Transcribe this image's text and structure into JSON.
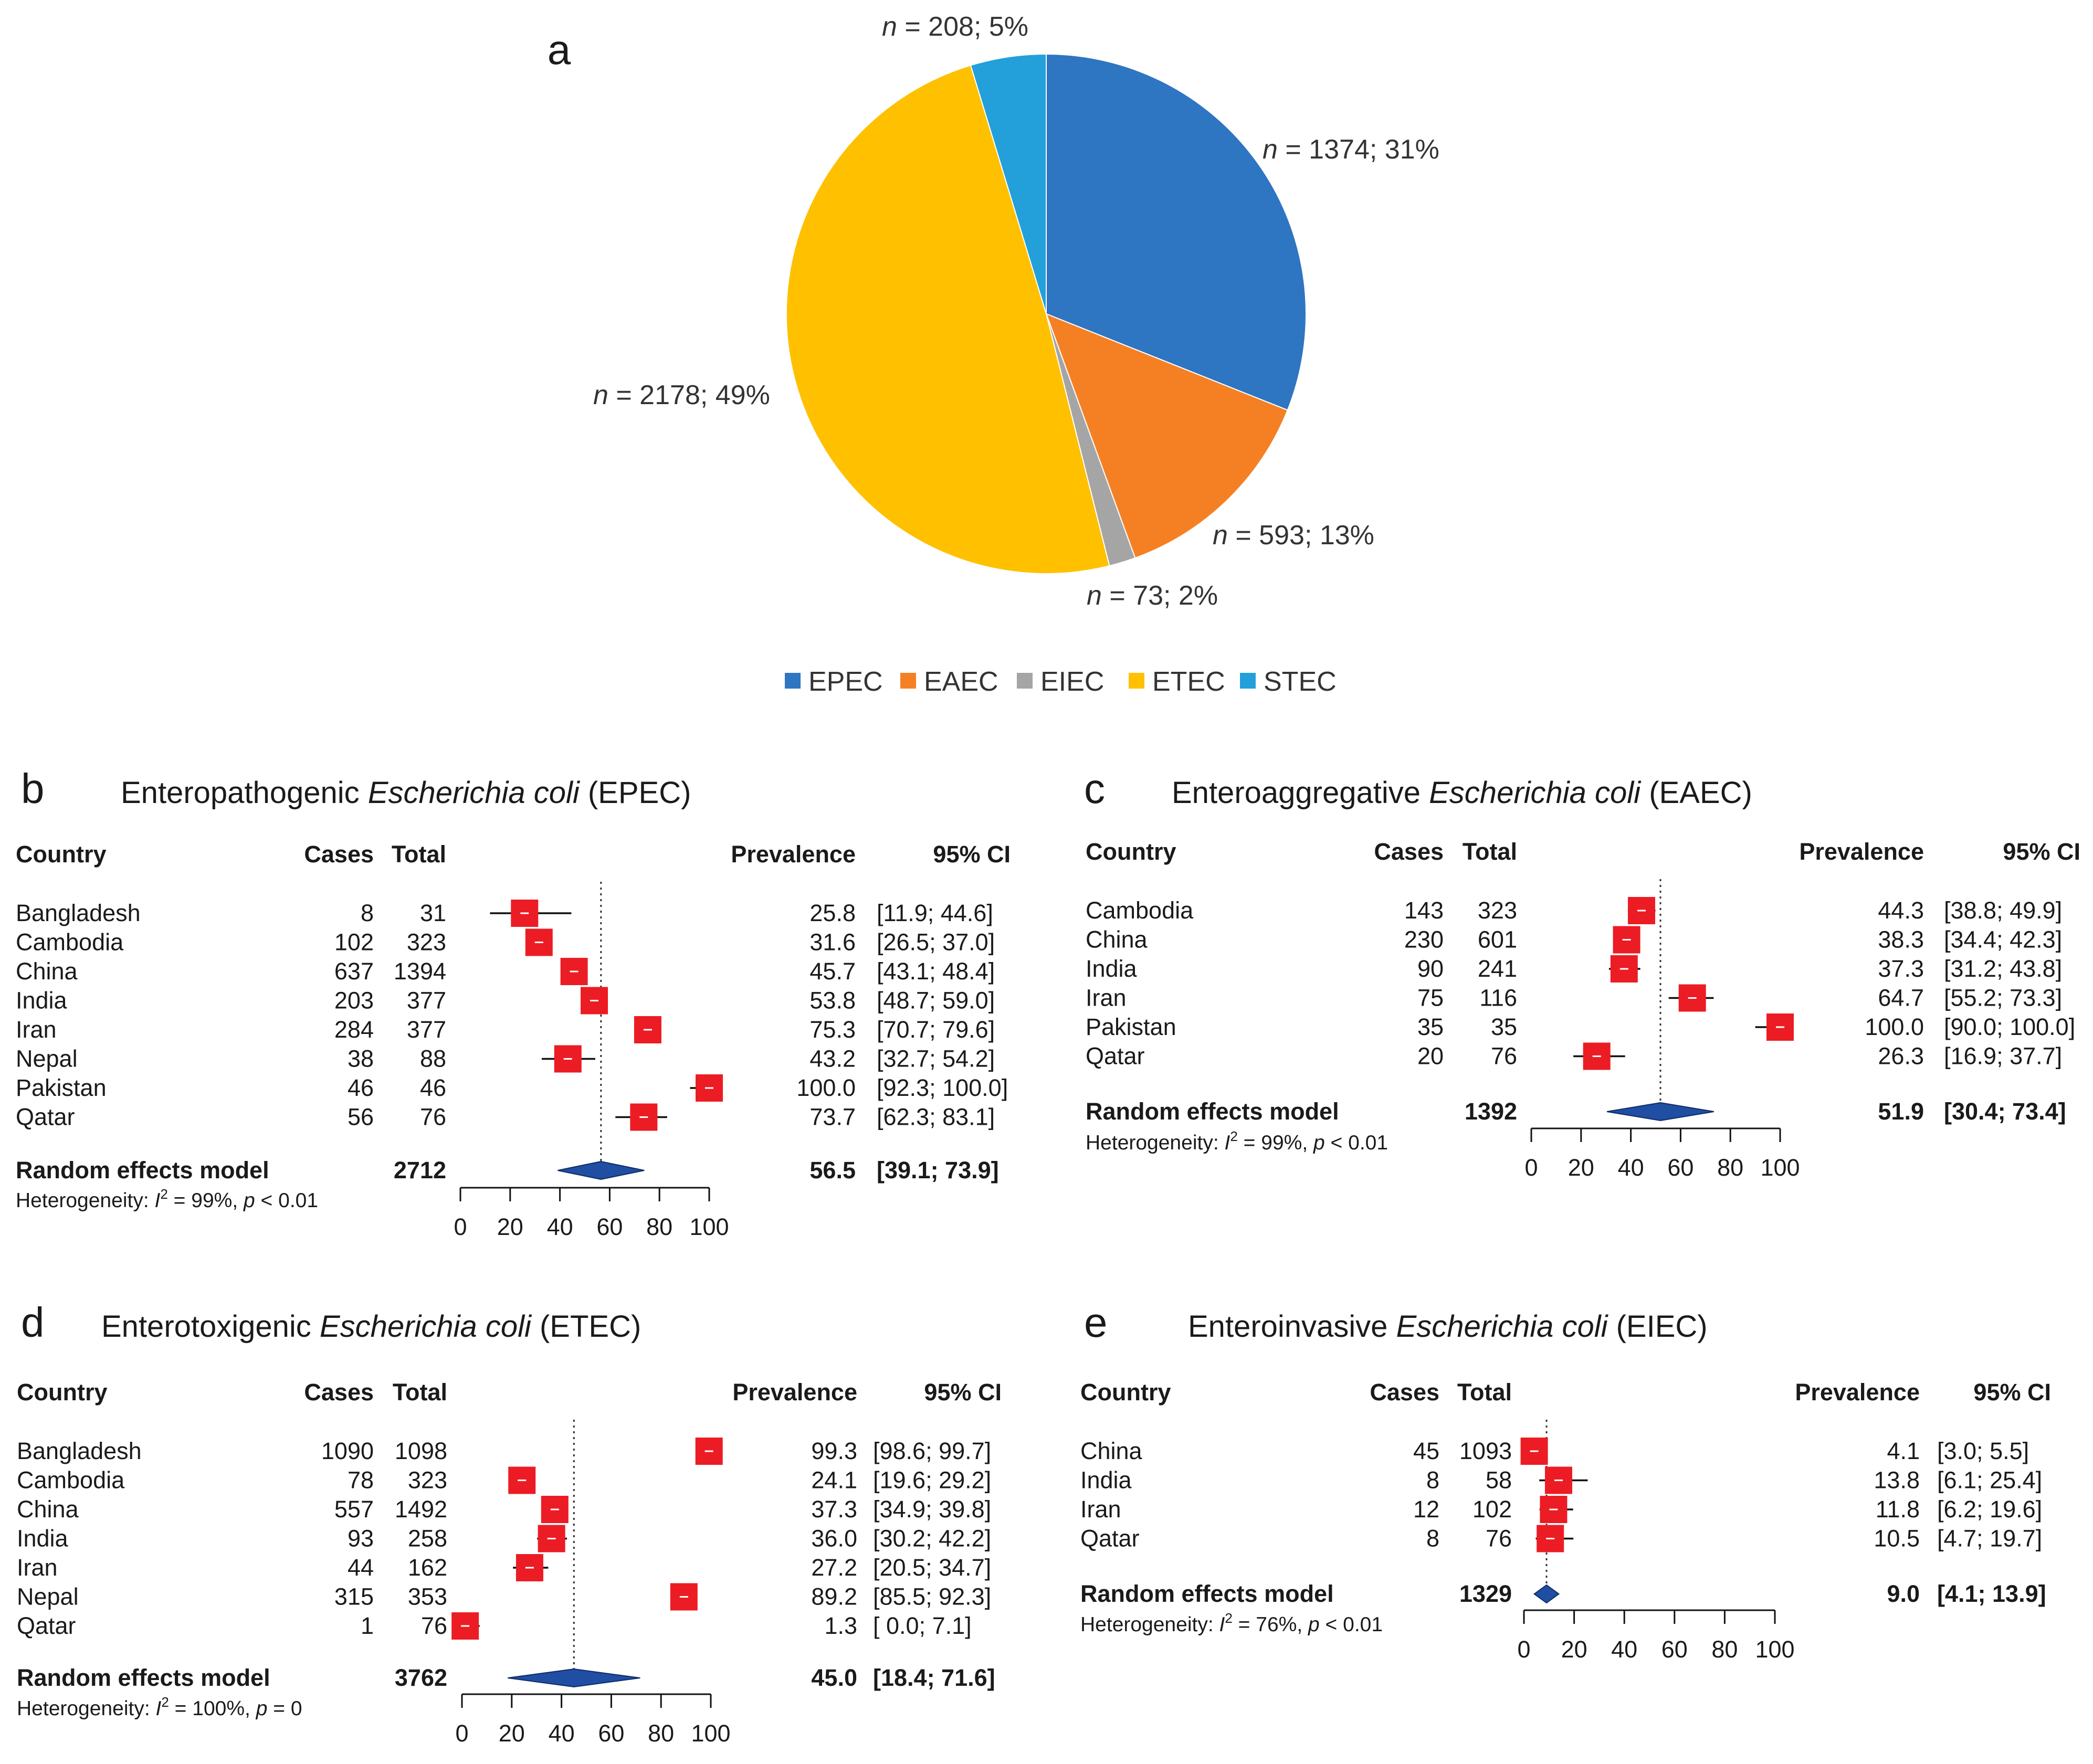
{
  "chart_data": [
    {
      "id": "a",
      "panel_label": "a",
      "type": "pie",
      "slices": [
        {
          "name": "EPEC",
          "n_label": "n",
          "label_rest": " = 1374; 31%",
          "value": 1374,
          "color": "#2E75C2"
        },
        {
          "name": "EAEC",
          "n_label": "n",
          "label_rest": " = 593; 13%",
          "value": 593,
          "color": "#F58024"
        },
        {
          "name": "EIEC",
          "n_label": "n",
          "label_rest": " = 73; 2%",
          "value": 73,
          "color": "#A5A5A5"
        },
        {
          "name": "ETEC",
          "n_label": "n",
          "label_rest": " = 2178; 49%",
          "value": 2178,
          "color": "#FFC000"
        },
        {
          "name": "STEC",
          "n_label": "n",
          "label_rest": " = 208; 5%",
          "value": 208,
          "color": "#23A0DA"
        }
      ],
      "legend_position": "bottom"
    },
    {
      "id": "b",
      "panel_label": "b",
      "type": "forest",
      "title_pre": "Enteropathogenic ",
      "title_italic": "Escherichia coli",
      "title_post": " (EPEC)",
      "headers": {
        "country": "Country",
        "cases": "Cases",
        "total": "Total",
        "prevalence": "Prevalence",
        "ci": "95% CI"
      },
      "rows": [
        {
          "country": "Bangladesh",
          "cases": "8",
          "total": "31",
          "prev": "25.8",
          "ci": "[11.9;  44.6]",
          "est": 25.8,
          "lo": 11.9,
          "hi": 44.6
        },
        {
          "country": "Cambodia",
          "cases": "102",
          "total": "323",
          "prev": "31.6",
          "ci": "[26.5;  37.0]",
          "est": 31.6,
          "lo": 26.5,
          "hi": 37.0
        },
        {
          "country": "China",
          "cases": "637",
          "total": "1394",
          "prev": "45.7",
          "ci": "[43.1;  48.4]",
          "est": 45.7,
          "lo": 43.1,
          "hi": 48.4
        },
        {
          "country": "India",
          "cases": "203",
          "total": "377",
          "prev": "53.8",
          "ci": "[48.7;  59.0]",
          "est": 53.8,
          "lo": 48.7,
          "hi": 59.0
        },
        {
          "country": "Iran",
          "cases": "284",
          "total": "377",
          "prev": "75.3",
          "ci": "[70.7;  79.6]",
          "est": 75.3,
          "lo": 70.7,
          "hi": 79.6
        },
        {
          "country": "Nepal",
          "cases": "38",
          "total": "88",
          "prev": "43.2",
          "ci": "[32.7;  54.2]",
          "est": 43.2,
          "lo": 32.7,
          "hi": 54.2
        },
        {
          "country": "Pakistan",
          "cases": "46",
          "total": "46",
          "prev": "100.0",
          "ci": "[92.3; 100.0]",
          "est": 100.0,
          "lo": 92.3,
          "hi": 100.0
        },
        {
          "country": "Qatar",
          "cases": "56",
          "total": "76",
          "prev": "73.7",
          "ci": "[62.3;  83.1]",
          "est": 73.7,
          "lo": 62.3,
          "hi": 83.1
        }
      ],
      "summary": {
        "label": "Random effects model",
        "total": "2712",
        "prev": "56.5",
        "ci": "[39.1;  73.9]",
        "est": 56.5,
        "lo": 39.1,
        "hi": 73.9
      },
      "het_pre": "Heterogeneity: ",
      "het_I": "I",
      "het_sup": "2",
      "het_mid": " = 99%, ",
      "het_p": "p",
      "het_end": " < 0.01",
      "axis_ticks": [
        0,
        20,
        40,
        60,
        80,
        100
      ],
      "xlim": [
        0,
        100
      ]
    },
    {
      "id": "c",
      "panel_label": "c",
      "type": "forest",
      "title_pre": "Enteroaggregative ",
      "title_italic": "Escherichia coli",
      "title_post": " (EAEC)",
      "headers": {
        "country": "Country",
        "cases": "Cases",
        "total": "Total",
        "prevalence": "Prevalence",
        "ci": "95% CI"
      },
      "rows": [
        {
          "country": "Cambodia",
          "cases": "143",
          "total": "323",
          "prev": "44.3",
          "ci": "[38.8;  49.9]",
          "est": 44.3,
          "lo": 38.8,
          "hi": 49.9
        },
        {
          "country": "China",
          "cases": "230",
          "total": "601",
          "prev": "38.3",
          "ci": "[34.4;  42.3]",
          "est": 38.3,
          "lo": 34.4,
          "hi": 42.3
        },
        {
          "country": "India",
          "cases": "90",
          "total": "241",
          "prev": "37.3",
          "ci": "[31.2;  43.8]",
          "est": 37.3,
          "lo": 31.2,
          "hi": 43.8
        },
        {
          "country": "Iran",
          "cases": "75",
          "total": "116",
          "prev": "64.7",
          "ci": "[55.2;  73.3]",
          "est": 64.7,
          "lo": 55.2,
          "hi": 73.3
        },
        {
          "country": "Pakistan",
          "cases": "35",
          "total": "35",
          "prev": "100.0",
          "ci": "[90.0; 100.0]",
          "est": 100.0,
          "lo": 90.0,
          "hi": 100.0
        },
        {
          "country": "Qatar",
          "cases": "20",
          "total": "76",
          "prev": "26.3",
          "ci": "[16.9;  37.7]",
          "est": 26.3,
          "lo": 16.9,
          "hi": 37.7
        }
      ],
      "summary": {
        "label": "Random effects model",
        "total": "1392",
        "prev": "51.9",
        "ci": "[30.4;  73.4]",
        "est": 51.9,
        "lo": 30.4,
        "hi": 73.4
      },
      "het_pre": "Heterogeneity: ",
      "het_I": "I",
      "het_sup": "2",
      "het_mid": " = 99%, ",
      "het_p": "p",
      "het_end": " < 0.01",
      "axis_ticks": [
        0,
        20,
        40,
        60,
        80,
        100
      ],
      "xlim": [
        0,
        100
      ]
    },
    {
      "id": "d",
      "panel_label": "d",
      "type": "forest",
      "title_pre": "Enterotoxigenic ",
      "title_italic": "Escherichia coli",
      "title_post": " (ETEC)",
      "headers": {
        "country": "Country",
        "cases": "Cases",
        "total": "Total",
        "prevalence": "Prevalence",
        "ci": "95% CI"
      },
      "rows": [
        {
          "country": "Bangladesh",
          "cases": "1090",
          "total": "1098",
          "prev": "99.3",
          "ci": "[98.6; 99.7]",
          "est": 99.3,
          "lo": 98.6,
          "hi": 99.7
        },
        {
          "country": "Cambodia",
          "cases": "78",
          "total": "323",
          "prev": "24.1",
          "ci": "[19.6; 29.2]",
          "est": 24.1,
          "lo": 19.6,
          "hi": 29.2
        },
        {
          "country": "China",
          "cases": "557",
          "total": "1492",
          "prev": "37.3",
          "ci": "[34.9; 39.8]",
          "est": 37.3,
          "lo": 34.9,
          "hi": 39.8
        },
        {
          "country": "India",
          "cases": "93",
          "total": "258",
          "prev": "36.0",
          "ci": "[30.2; 42.2]",
          "est": 36.0,
          "lo": 30.2,
          "hi": 42.2
        },
        {
          "country": "Iran",
          "cases": "44",
          "total": "162",
          "prev": "27.2",
          "ci": "[20.5; 34.7]",
          "est": 27.2,
          "lo": 20.5,
          "hi": 34.7
        },
        {
          "country": "Nepal",
          "cases": "315",
          "total": "353",
          "prev": "89.2",
          "ci": "[85.5; 92.3]",
          "est": 89.2,
          "lo": 85.5,
          "hi": 92.3
        },
        {
          "country": "Qatar",
          "cases": "1",
          "total": "76",
          "prev": "1.3",
          "ci": "[ 0.0;  7.1]",
          "est": 1.3,
          "lo": 0.0,
          "hi": 7.1
        }
      ],
      "summary": {
        "label": "Random effects model",
        "total": "3762",
        "prev": "45.0",
        "ci": "[18.4; 71.6]",
        "est": 45.0,
        "lo": 18.4,
        "hi": 71.6
      },
      "het_pre": "Heterogeneity: ",
      "het_I": "I",
      "het_sup": "2",
      "het_mid": " = 100%, ",
      "het_p": "p",
      "het_end": " = 0",
      "axis_ticks": [
        0,
        20,
        40,
        60,
        80,
        100
      ],
      "xlim": [
        0,
        100
      ]
    },
    {
      "id": "e",
      "panel_label": "e",
      "type": "forest",
      "title_pre": "Enteroinvasive ",
      "title_italic": "Escherichia coli",
      "title_post": " (EIEC)",
      "headers": {
        "country": "Country",
        "cases": "Cases",
        "total": "Total",
        "prevalence": "Prevalence",
        "ci": "95% CI"
      },
      "rows": [
        {
          "country": "China",
          "cases": "45",
          "total": "1093",
          "prev": "4.1",
          "ci": "[3.0; 5.5]",
          "est": 4.1,
          "lo": 3.0,
          "hi": 5.5
        },
        {
          "country": "India",
          "cases": "8",
          "total": "58",
          "prev": "13.8",
          "ci": "[6.1; 25.4]",
          "est": 13.8,
          "lo": 6.1,
          "hi": 25.4
        },
        {
          "country": "Iran",
          "cases": "12",
          "total": "102",
          "prev": "11.8",
          "ci": "[6.2; 19.6]",
          "est": 11.8,
          "lo": 6.2,
          "hi": 19.6
        },
        {
          "country": "Qatar",
          "cases": "8",
          "total": "76",
          "prev": "10.5",
          "ci": "[4.7; 19.7]",
          "est": 10.5,
          "lo": 4.7,
          "hi": 19.7
        }
      ],
      "summary": {
        "label": "Random effects model",
        "total": "1329",
        "prev": "9.0",
        "ci": "[4.1; 13.9]",
        "est": 9.0,
        "lo": 4.1,
        "hi": 13.9
      },
      "het_pre": "Heterogeneity: ",
      "het_I": "I",
      "het_sup": "2",
      "het_mid": " = 76%, ",
      "het_p": "p",
      "het_end": " < 0.01",
      "axis_ticks": [
        0,
        20,
        40,
        60,
        80,
        100
      ],
      "xlim": [
        0,
        100
      ]
    }
  ],
  "colors": {
    "marker": "#EC1C24",
    "diamond": "#1F4EA3",
    "diamond_stroke": "#0E2C66",
    "text": "#1a1a1a",
    "pie_label": "#333333"
  }
}
